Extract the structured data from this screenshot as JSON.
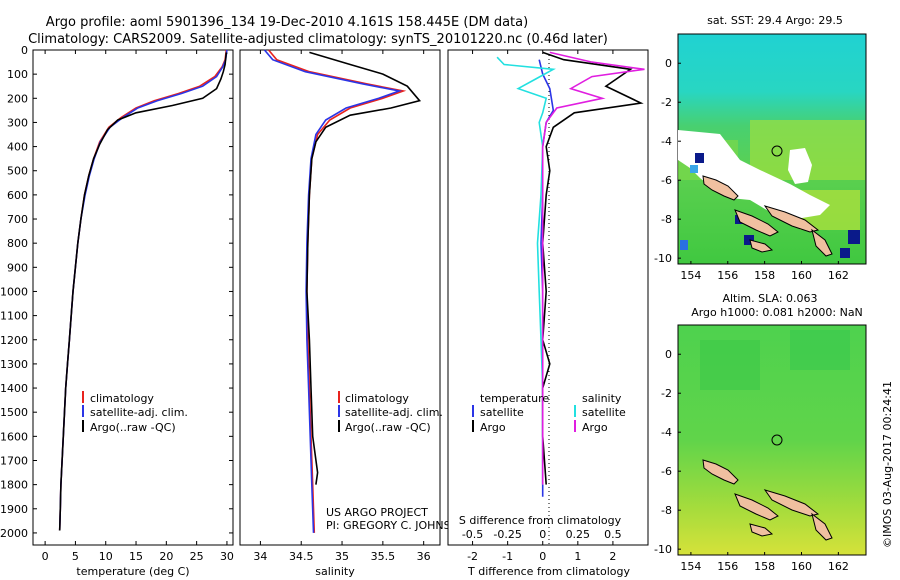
{
  "header": {
    "line1": "Argo profile: aoml 5901396_134 19-Dec-2010 4.161S 158.445E (DM data)",
    "line2": "Climatology: CARS2009. Satellite-adjusted climatology: synTS_20101220.nc (0.46d later)"
  },
  "colors": {
    "clim": "#e8231e",
    "sat": "#2b35e6",
    "argo": "#000000",
    "sat_s": "#22e0e0",
    "argo_s": "#e01ee0",
    "white": "#ffffff"
  },
  "chart_data": [
    {
      "id": "temperature",
      "type": "line",
      "xlabel": "temperature (deg C)",
      "ylabel": "",
      "xlim": [
        -2,
        31
      ],
      "ylim": [
        2050,
        0
      ],
      "xticks": [
        "0",
        "5",
        "10",
        "15",
        "20",
        "25",
        "30"
      ],
      "xtick_values": [
        0,
        5,
        10,
        15,
        20,
        25,
        30
      ],
      "yticks": [
        "0",
        "100",
        "200",
        "300",
        "400",
        "500",
        "600",
        "700",
        "800",
        "900",
        "1000",
        "1100",
        "1200",
        "1300",
        "1400",
        "1500",
        "1600",
        "1700",
        "1800",
        "1900",
        "2000"
      ],
      "ytick_values": [
        0,
        100,
        200,
        300,
        400,
        500,
        600,
        700,
        800,
        900,
        1000,
        1100,
        1200,
        1300,
        1400,
        1500,
        1600,
        1700,
        1800,
        1900,
        2000
      ],
      "legend": [
        "climatology",
        "satellite-adj. clim.",
        "Argo(..raw -QC)"
      ],
      "series": [
        {
          "name": "climatology",
          "color_key": "clim",
          "points": [
            [
              29.9,
              0
            ],
            [
              29.7,
              40
            ],
            [
              29.2,
              70
            ],
            [
              28,
              110
            ],
            [
              25.5,
              150
            ],
            [
              22,
              180
            ],
            [
              18,
              210
            ],
            [
              15,
              240
            ],
            [
              12.5,
              280
            ],
            [
              10.5,
              320
            ],
            [
              9,
              380
            ],
            [
              8,
              450
            ],
            [
              7.2,
              520
            ],
            [
              6.5,
              600
            ],
            [
              5.9,
              700
            ],
            [
              5.4,
              800
            ],
            [
              5,
              900
            ],
            [
              4.6,
              1000
            ],
            [
              4.3,
              1100
            ],
            [
              4,
              1200
            ],
            [
              3.7,
              1300
            ],
            [
              3.4,
              1400
            ],
            [
              3.2,
              1500
            ],
            [
              3,
              1600
            ],
            [
              2.8,
              1700
            ],
            [
              2.6,
              1800
            ],
            [
              2.5,
              1900
            ],
            [
              2.4,
              1990
            ]
          ]
        },
        {
          "name": "satellite-adj. clim.",
          "color_key": "sat",
          "points": [
            [
              30,
              0
            ],
            [
              29.8,
              40
            ],
            [
              29.3,
              70
            ],
            [
              28.3,
              110
            ],
            [
              26,
              150
            ],
            [
              22.5,
              180
            ],
            [
              18.5,
              210
            ],
            [
              15.3,
              240
            ],
            [
              12.8,
              280
            ],
            [
              10.7,
              320
            ],
            [
              9.1,
              380
            ],
            [
              8.1,
              450
            ],
            [
              7.3,
              520
            ],
            [
              6.6,
              600
            ],
            [
              5.9,
              700
            ],
            [
              5.4,
              800
            ],
            [
              5,
              900
            ],
            [
              4.6,
              1000
            ],
            [
              4.3,
              1100
            ],
            [
              4,
              1200
            ],
            [
              3.7,
              1300
            ],
            [
              3.4,
              1400
            ],
            [
              3.2,
              1500
            ],
            [
              3,
              1600
            ],
            [
              2.8,
              1700
            ],
            [
              2.6,
              1800
            ],
            [
              2.5,
              1900
            ],
            [
              2.4,
              1990
            ]
          ]
        },
        {
          "name": "Argo(..raw -QC)",
          "color_key": "argo",
          "points": [
            [
              29.9,
              10
            ],
            [
              29.7,
              60
            ],
            [
              29.4,
              90
            ],
            [
              29,
              120
            ],
            [
              28.3,
              160
            ],
            [
              26,
              200
            ],
            [
              21,
              230
            ],
            [
              15,
              260
            ],
            [
              12,
              290
            ],
            [
              10.3,
              330
            ],
            [
              9,
              390
            ],
            [
              8,
              450
            ],
            [
              7.2,
              520
            ],
            [
              6.5,
              600
            ],
            [
              5.9,
              700
            ],
            [
              5.4,
              800
            ],
            [
              5,
              900
            ],
            [
              4.6,
              1000
            ],
            [
              4.3,
              1100
            ],
            [
              4,
              1200
            ],
            [
              3.7,
              1300
            ],
            [
              3.4,
              1400
            ],
            [
              3.2,
              1500
            ],
            [
              3,
              1600
            ],
            [
              2.8,
              1700
            ],
            [
              2.6,
              1800
            ],
            [
              2.5,
              1900
            ],
            [
              2.4,
              1990
            ]
          ]
        }
      ]
    },
    {
      "id": "salinity",
      "type": "line",
      "xlabel": "salinity",
      "xlim": [
        33.75,
        36.2
      ],
      "ylim": [
        2050,
        0
      ],
      "xticks": [
        "34",
        "34.5",
        "35",
        "35.5",
        "36"
      ],
      "xtick_values": [
        34,
        34.5,
        35,
        35.5,
        36
      ],
      "legend": [
        "climatology",
        "satellite-adj. clim.",
        "Argo(..raw -QC)"
      ],
      "annotation": [
        "US ARGO PROJECT",
        "PI: GREGORY C. JOHNSON"
      ],
      "series": [
        {
          "name": "climatology",
          "color_key": "clim",
          "points": [
            [
              34.1,
              0
            ],
            [
              34.2,
              40
            ],
            [
              34.6,
              90
            ],
            [
              35.3,
              140
            ],
            [
              35.75,
              170
            ],
            [
              35.5,
              200
            ],
            [
              35.1,
              240
            ],
            [
              34.85,
              290
            ],
            [
              34.7,
              350
            ],
            [
              34.63,
              450
            ],
            [
              34.6,
              600
            ],
            [
              34.58,
              800
            ],
            [
              34.57,
              1000
            ],
            [
              34.58,
              1200
            ],
            [
              34.6,
              1400
            ],
            [
              34.62,
              1600
            ],
            [
              34.64,
              1800
            ],
            [
              34.66,
              2000
            ]
          ]
        },
        {
          "name": "satellite-adj. clim.",
          "color_key": "sat",
          "points": [
            [
              34.05,
              0
            ],
            [
              34.15,
              40
            ],
            [
              34.55,
              90
            ],
            [
              35.25,
              140
            ],
            [
              35.7,
              170
            ],
            [
              35.45,
              200
            ],
            [
              35.05,
              240
            ],
            [
              34.8,
              290
            ],
            [
              34.68,
              350
            ],
            [
              34.62,
              450
            ],
            [
              34.59,
              600
            ],
            [
              34.57,
              800
            ],
            [
              34.56,
              1000
            ],
            [
              34.57,
              1200
            ],
            [
              34.59,
              1400
            ],
            [
              34.61,
              1600
            ],
            [
              34.63,
              1800
            ],
            [
              34.65,
              2000
            ]
          ]
        },
        {
          "name": "Argo(..raw -QC)",
          "color_key": "argo",
          "points": [
            [
              34.6,
              10
            ],
            [
              35.1,
              60
            ],
            [
              35.5,
              100
            ],
            [
              35.8,
              150
            ],
            [
              35.95,
              210
            ],
            [
              35.6,
              240
            ],
            [
              35.1,
              270
            ],
            [
              34.8,
              320
            ],
            [
              34.68,
              380
            ],
            [
              34.63,
              450
            ],
            [
              34.6,
              600
            ],
            [
              34.58,
              800
            ],
            [
              34.57,
              1000
            ],
            [
              34.6,
              1200
            ],
            [
              34.62,
              1400
            ],
            [
              34.64,
              1600
            ],
            [
              34.7,
              1750
            ],
            [
              34.68,
              1800
            ]
          ]
        }
      ]
    },
    {
      "id": "difference",
      "type": "line",
      "xlabel": "T difference from climatology",
      "xlabel_top": "S difference from climatology",
      "xlim": [
        -2.7,
        3.0
      ],
      "ylim": [
        2050,
        0
      ],
      "xticks": [
        "-2",
        "-1",
        "0",
        "1",
        "2"
      ],
      "xtick_values": [
        -2,
        -1,
        0,
        1,
        2
      ],
      "sticks": [
        "-0.5",
        "-0.25",
        "0",
        "0.25",
        "0.5"
      ],
      "stick_values": [
        -2,
        -1,
        0,
        1,
        2
      ],
      "legend_titles": [
        "temperature",
        "salinity"
      ],
      "legend_left": [
        "satellite",
        "Argo"
      ],
      "legend_right": [
        "satellite",
        "Argo"
      ],
      "series": [
        {
          "name": "T satellite",
          "color_key": "sat",
          "points": [
            [
              -0.1,
              40
            ],
            [
              0,
              100
            ],
            [
              0.2,
              160
            ],
            [
              0.3,
              250
            ],
            [
              0.1,
              300
            ],
            [
              0,
              400
            ],
            [
              0,
              600
            ],
            [
              -0.05,
              800
            ],
            [
              0,
              1000
            ],
            [
              0,
              1400
            ],
            [
              0,
              1800
            ],
            [
              0,
              1850
            ]
          ]
        },
        {
          "name": "T Argo",
          "color_key": "argo",
          "points": [
            [
              0,
              10
            ],
            [
              0.6,
              40
            ],
            [
              2.5,
              80
            ],
            [
              1.8,
              150
            ],
            [
              2.8,
              220
            ],
            [
              0.9,
              260
            ],
            [
              0.3,
              320
            ],
            [
              0.1,
              400
            ],
            [
              0.2,
              500
            ],
            [
              0.1,
              600
            ],
            [
              0,
              800
            ],
            [
              0.1,
              1000
            ],
            [
              0,
              1200
            ],
            [
              0.2,
              1300
            ],
            [
              0,
              1400
            ],
            [
              0,
              1600
            ],
            [
              0.1,
              1800
            ]
          ]
        },
        {
          "name": "S satellite",
          "color_key": "sat_s",
          "points": [
            [
              -1.3,
              30
            ],
            [
              -1.1,
              60
            ],
            [
              0.3,
              80
            ],
            [
              -0.2,
              120
            ],
            [
              -0.7,
              160
            ],
            [
              0.1,
              200
            ],
            [
              0,
              260
            ],
            [
              -0.1,
              300
            ],
            [
              0,
              400
            ],
            [
              -0.05,
              600
            ],
            [
              -0.15,
              800
            ],
            [
              -0.1,
              1000
            ],
            [
              -0.05,
              1200
            ],
            [
              0,
              1400
            ],
            [
              0,
              1600
            ],
            [
              0,
              1800
            ]
          ]
        },
        {
          "name": "S Argo",
          "color_key": "argo_s",
          "points": [
            [
              0.2,
              10
            ],
            [
              1.4,
              50
            ],
            [
              2.9,
              80
            ],
            [
              1.4,
              110
            ],
            [
              0.8,
              160
            ],
            [
              1.7,
              200
            ],
            [
              0.4,
              240
            ],
            [
              0.1,
              300
            ],
            [
              0,
              400
            ],
            [
              0,
              600
            ],
            [
              0,
              800
            ],
            [
              0,
              1000
            ],
            [
              0,
              1200
            ],
            [
              0,
              1400
            ],
            [
              0,
              1600
            ],
            [
              0,
              1800
            ]
          ]
        }
      ]
    },
    {
      "id": "sst_map",
      "type": "heatmap",
      "title": "sat. SST: 29.4  Argo: 29.5",
      "xticks": [
        "154",
        "156",
        "158",
        "160",
        "162"
      ],
      "yticks": [
        "0",
        "-2",
        "-4",
        "-6",
        "-8",
        "-10"
      ],
      "float_position": [
        158.445,
        -4.161
      ]
    },
    {
      "id": "sla_map",
      "type": "heatmap",
      "title": "Altim. SLA: 0.063",
      "subtitle": "Argo h1000: 0.081  h2000: NaN",
      "xticks": [
        "154",
        "156",
        "158",
        "160",
        "162"
      ],
      "yticks": [
        "0",
        "-2",
        "-4",
        "-6",
        "-8",
        "-10"
      ],
      "float_position": [
        158.445,
        -4.161
      ]
    }
  ],
  "footer": {
    "credit": "©IMOS 03-Aug-2017 00:24:41"
  }
}
